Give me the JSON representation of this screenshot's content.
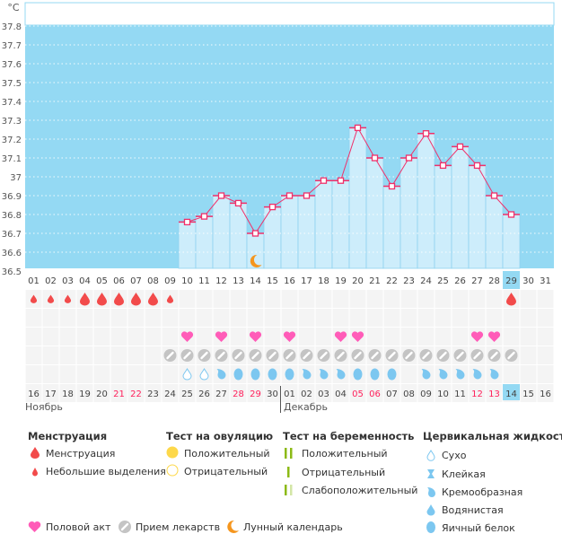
{
  "unit": "°C",
  "colors": {
    "plot_bg": "#94d9f3",
    "bar": "#cdedfb",
    "line": "#f0306a",
    "menstruation": "#f24b4b",
    "heart": "#ff5cb8",
    "pill": "#c4c4c4",
    "fluid": "#7cc7f0",
    "moon": "#f5961e",
    "weekend": "#ff1f5a",
    "today": "#94d9f3"
  },
  "chart_data": {
    "type": "line",
    "ylim": [
      36.5,
      37.8
    ],
    "yticks": [
      "37.8",
      "37.7",
      "37.6",
      "37.5",
      "37.4",
      "37.3",
      "37.2",
      "37.1",
      "37",
      "36.9",
      "36.8",
      "36.7",
      "36.6",
      "36.5"
    ],
    "cycle_days": [
      "01",
      "02",
      "03",
      "04",
      "05",
      "06",
      "07",
      "08",
      "09",
      "10",
      "11",
      "12",
      "13",
      "14",
      "15",
      "16",
      "17",
      "18",
      "19",
      "20",
      "21",
      "22",
      "23",
      "24",
      "25",
      "26",
      "27",
      "28",
      "29",
      "30",
      "31"
    ],
    "temperatures": [
      null,
      null,
      null,
      null,
      null,
      null,
      null,
      null,
      null,
      36.76,
      36.79,
      36.9,
      36.86,
      36.7,
      36.84,
      36.9,
      36.9,
      36.98,
      36.98,
      37.26,
      37.1,
      36.95,
      37.1,
      37.23,
      37.06,
      37.16,
      37.06,
      36.9,
      36.8,
      null,
      null
    ],
    "grid": true
  },
  "current_cycle_day": 29,
  "rows": {
    "menstruation": [
      "small",
      "small",
      "small",
      "large",
      "large",
      "large",
      "large",
      "large",
      "small",
      null,
      null,
      null,
      null,
      null,
      null,
      null,
      null,
      null,
      null,
      null,
      null,
      null,
      null,
      null,
      null,
      null,
      null,
      null,
      "large",
      null,
      null
    ],
    "ovulation": [],
    "intercourse_days": [
      10,
      12,
      14,
      16,
      19,
      20,
      27,
      28
    ],
    "medication_days": [
      9,
      10,
      11,
      12,
      13,
      14,
      15,
      16,
      17,
      18,
      19,
      20,
      21,
      22,
      23,
      24,
      25,
      26,
      27,
      28,
      29
    ],
    "moon_days": [
      14
    ],
    "cervical": [
      null,
      null,
      null,
      null,
      null,
      null,
      null,
      null,
      null,
      "dry",
      "dry",
      "creamy",
      "egg",
      "egg",
      "egg",
      "egg",
      "creamy",
      "creamy",
      "creamy",
      "egg",
      "egg",
      "egg",
      null,
      "creamy",
      "creamy",
      "creamy",
      "creamy",
      "creamy",
      null,
      null,
      null
    ]
  },
  "calendar": {
    "dates": [
      "16",
      "17",
      "18",
      "19",
      "20",
      "21",
      "22",
      "23",
      "24",
      "25",
      "26",
      "27",
      "28",
      "29",
      "30",
      "01",
      "02",
      "03",
      "04",
      "05",
      "06",
      "07",
      "08",
      "09",
      "10",
      "11",
      "12",
      "13",
      "14",
      "15",
      "16"
    ],
    "weekend": [
      false,
      false,
      false,
      false,
      false,
      true,
      true,
      false,
      false,
      false,
      false,
      false,
      true,
      true,
      false,
      false,
      false,
      false,
      false,
      true,
      true,
      false,
      false,
      false,
      false,
      false,
      true,
      true,
      false,
      false,
      false
    ],
    "months": [
      "Ноябрь",
      "Декабрь"
    ]
  },
  "legend": {
    "menstruation": {
      "title": "Менструация",
      "items": [
        "Менструация",
        "Небольшие выделения"
      ]
    },
    "ovulation": {
      "title": "Тест на овуляцию",
      "items": [
        "Положительный",
        "Отрицательный"
      ]
    },
    "pregnancy": {
      "title": "Тест на беременность",
      "items": [
        "Положительный",
        "Отрицательный",
        "Слабоположительный"
      ]
    },
    "cervical": {
      "title": "Цервикальная жидкость",
      "items": [
        "Сухо",
        "Клейкая",
        "Кремообразная",
        "Водянистая",
        "Яичный белок"
      ]
    },
    "other": [
      "Половой акт",
      "Прием лекарств",
      "Лунный календарь"
    ]
  }
}
